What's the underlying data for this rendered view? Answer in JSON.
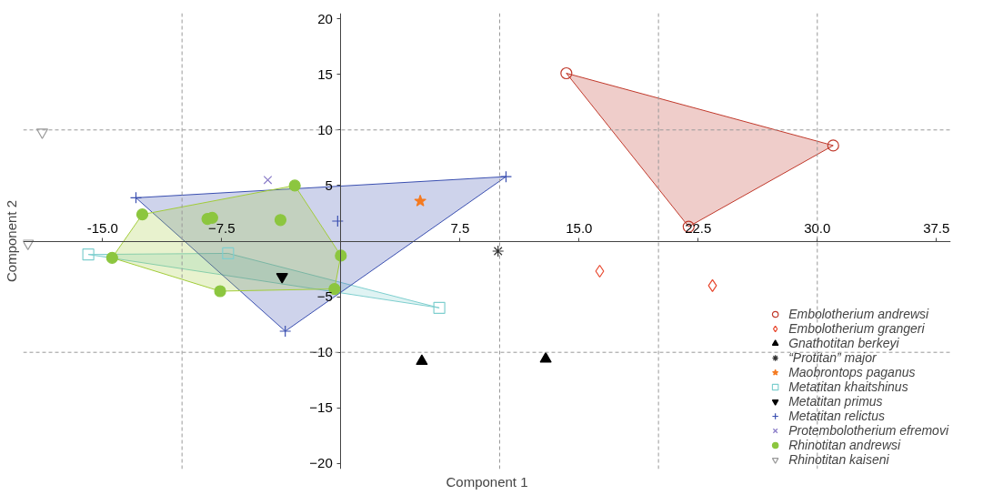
{
  "chart_data": {
    "type": "scatter",
    "xlabel": "Component 1",
    "ylabel": "Component 2",
    "xlim": [
      -20,
      38.4
    ],
    "ylim": [
      -20.5,
      20.5
    ],
    "xticks": [
      {
        "value": -15,
        "label": "-15.0"
      },
      -7.5,
      7.5,
      {
        "value": 15,
        "label": "15.0"
      },
      22.5,
      {
        "value": 30,
        "label": "30.0"
      },
      37.5
    ],
    "yticks": [
      -20,
      -15,
      -10,
      -5,
      5,
      10,
      15,
      20
    ],
    "ref_lines": [
      {
        "axis": "x",
        "value": -10,
        "color": "#999999",
        "line_style": "dashed"
      },
      {
        "axis": "x",
        "value": 10,
        "color": "#999999",
        "line_style": "dashed"
      },
      {
        "axis": "x",
        "value": 20,
        "color": "#999999",
        "line_style": "dashed"
      },
      {
        "axis": "x",
        "value": 30,
        "color": "#999999",
        "line_style": "dashed"
      },
      {
        "axis": "y",
        "value": 10,
        "color": "#999999",
        "line_style": "dashed"
      },
      {
        "axis": "y",
        "value": -10,
        "color": "#999999",
        "line_style": "dashed"
      }
    ],
    "legend": "bottom right",
    "series": [
      {
        "type": "area",
        "color": "#c0392b",
        "x": [
          14.2,
          31.0,
          21.9
        ],
        "values": [
          15.1,
          8.6,
          1.3
        ]
      },
      {
        "type": "area",
        "color": "#7fcfcf",
        "x": [
          -15.9,
          -7.1,
          6.2
        ],
        "values": [
          -1.2,
          -1.1,
          -6.0
        ]
      },
      {
        "type": "area",
        "color": "#3a4fb0",
        "x": [
          -12.9,
          10.4,
          -3.5
        ],
        "values": [
          3.9,
          5.8,
          -8.1
        ]
      },
      {
        "type": "area",
        "color": "#a2cc3a",
        "x": [
          -12.5,
          -2.9,
          0.0,
          -0.4,
          -7.6,
          -14.4
        ],
        "values": [
          2.4,
          5.0,
          -1.3,
          -4.3,
          -4.5,
          -1.5
        ]
      },
      {
        "name": "Embolotherium andrewsi",
        "color": "#c0392b",
        "marker": "circle",
        "x": [
          14.2,
          31.0,
          21.9
        ],
        "values": [
          15.1,
          8.6,
          1.3
        ]
      },
      {
        "name": "Embolotherium grangeri",
        "color": "#e8482f",
        "marker": "diamond",
        "x": [
          16.3,
          23.4
        ],
        "values": [
          -2.7,
          -4.0
        ]
      },
      {
        "name": "Gnathotitan berkeyi",
        "color": "#000000",
        "marker": "triangle",
        "x": [
          5.1,
          12.9
        ],
        "values": [
          -10.8,
          -10.6
        ]
      },
      {
        "name": "“Protitan” major",
        "color": "#333333",
        "marker": "cross",
        "x": [
          9.9
        ],
        "values": [
          -0.9
        ]
      },
      {
        "name": "Maobrontops paganus",
        "color": "#f47a20",
        "marker": "star",
        "x": [
          5.0
        ],
        "values": [
          3.6
        ]
      },
      {
        "name": "Metatitan khaitshinus",
        "color": "#7fcfcf",
        "marker": "square",
        "x": [
          -15.9,
          -7.1,
          6.2
        ],
        "values": [
          -1.2,
          -1.1,
          -6.0
        ]
      },
      {
        "name": "Metatitan primus",
        "color": "#000000",
        "marker": "triangle",
        "x": [
          -3.7
        ],
        "values": [
          -3.2
        ]
      },
      {
        "name": "Metatitan relictus",
        "color": "#3a4fb0",
        "marker": "cross",
        "x": [
          -12.9,
          10.4,
          -3.5,
          -0.2
        ],
        "values": [
          3.9,
          5.8,
          -8.1,
          1.8
        ]
      },
      {
        "name": "Protembolotherium efremovi",
        "color": "#8a7cc8",
        "marker": "cross",
        "x": [
          -4.6
        ],
        "values": [
          5.5
        ]
      },
      {
        "name": "Rhinotitan andrewsi",
        "color": "#8cc63f",
        "marker": "circle",
        "x": [
          -12.5,
          -8.4,
          -8.1,
          -3.8,
          -2.9,
          0.0,
          -0.4,
          -7.6,
          -14.4
        ],
        "values": [
          2.4,
          2.0,
          2.1,
          1.9,
          5.0,
          -1.3,
          -4.3,
          -4.5,
          -1.5
        ]
      },
      {
        "name": "Rhinotitan kaiseni",
        "color": "#999999",
        "marker": "triangle",
        "x": [
          -18.8,
          -19.7
        ],
        "values": [
          9.8,
          -0.2
        ]
      }
    ]
  }
}
